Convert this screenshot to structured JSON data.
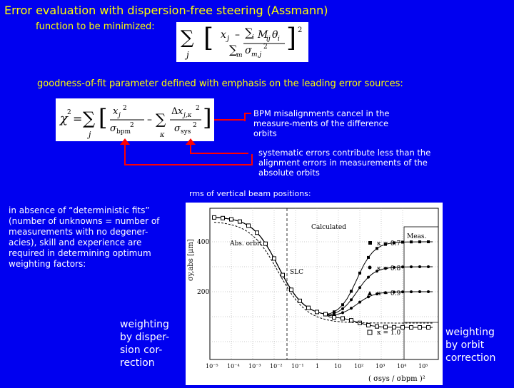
{
  "title": "Error evaluation with dispersion-free steering (Assmann)",
  "function_label": "function to be minimized:",
  "goodness_label": "goodness-of-fit parameter defined with emphasis on the leading error sources:",
  "annotations": {
    "bpm_note": "BPM misalignments cancel in the measure-ments of the difference orbits",
    "systematic_note": "systematic errors contribute less than the alignment errors in measurements of the absolute orbits",
    "rms_label": "rms of vertical beam positions:"
  },
  "deterministic_note": "in absence of “deterministic fits” (number of unknowns = number of measurements with no degener-acies), skill and experience are required in determining optimum weighting factors:",
  "weighting_left": "weighting by disper-sion cor-rection",
  "weighting_right": "weighting by orbit correction",
  "plot": {
    "y_axis_label": "σy,abs [μm]",
    "y_ticks": [
      "400",
      "200"
    ],
    "x_ticks": [
      "10⁻⁵",
      "10⁻⁴",
      "10⁻³",
      "10⁻²",
      "10⁻¹",
      "1",
      "10",
      "10²",
      "10³",
      "10⁴",
      "10⁵"
    ],
    "x_axis_label": "( σsys / σbpm )²",
    "labels": {
      "abs_orbit": "Abs. orbit",
      "calculated": "Calculated",
      "slc": "SLC",
      "meas": "Meas.",
      "k07": "κ = 0.7",
      "k08": "κ = 0.8",
      "k09": "κ = 0.9",
      "k10": "κ = 1.0"
    }
  }
}
